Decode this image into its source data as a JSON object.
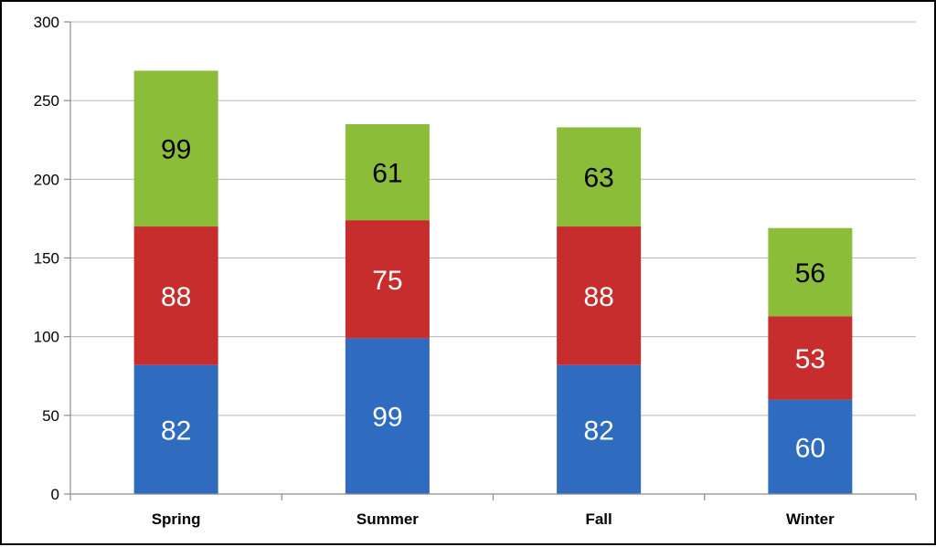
{
  "chart_data": {
    "type": "bar",
    "stacked": true,
    "categories": [
      "Spring",
      "Summer",
      "Fall",
      "Winter"
    ],
    "series": [
      {
        "values": [
          82,
          99,
          82,
          60
        ],
        "color": "#2f6cc0",
        "label_color": "#ffffff"
      },
      {
        "values": [
          88,
          75,
          88,
          53
        ],
        "color": "#c62d2c",
        "label_color": "#ffffff"
      },
      {
        "values": [
          99,
          61,
          63,
          56
        ],
        "color": "#8bbd3a",
        "label_color": "#000000"
      }
    ],
    "ylim": [
      0,
      300
    ],
    "yticks": [
      0,
      50,
      100,
      150,
      200,
      250,
      300
    ],
    "grid": true,
    "title": "",
    "xlabel": "",
    "ylabel": ""
  }
}
